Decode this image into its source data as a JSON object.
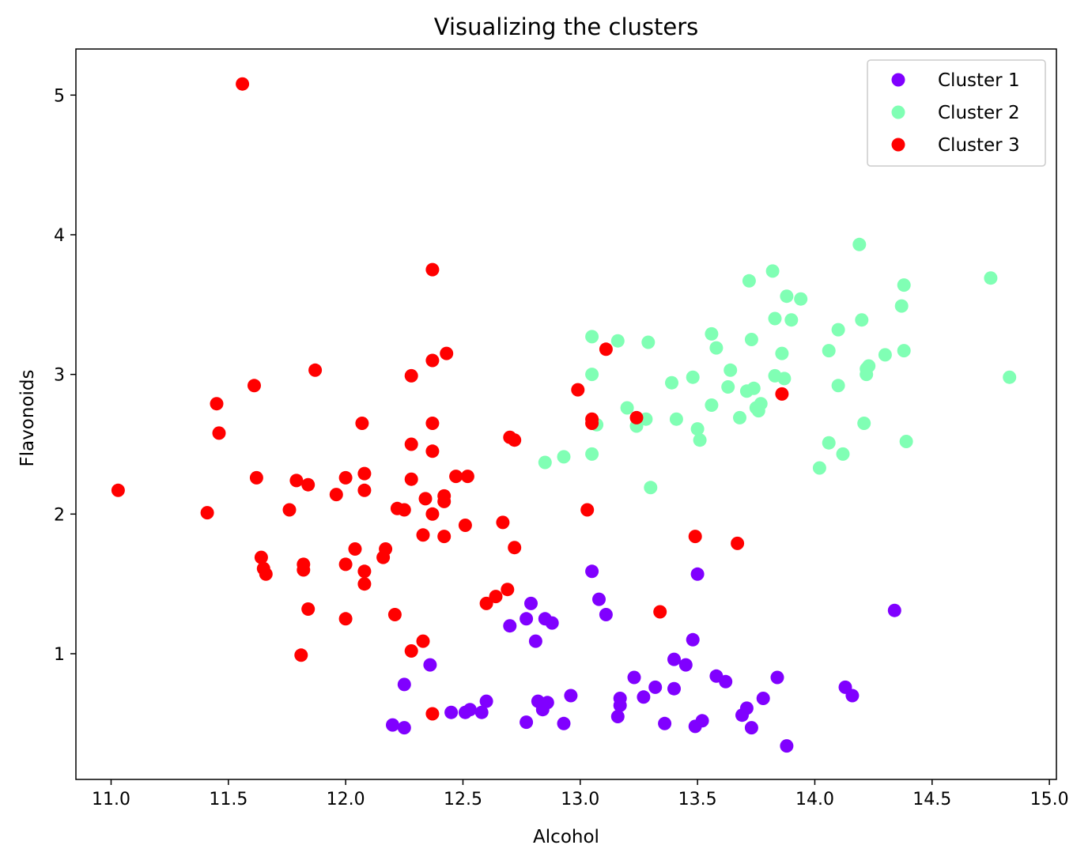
{
  "chart_data": {
    "type": "scatter",
    "title": "Visualizing the clusters",
    "xlabel": "Alcohol",
    "ylabel": "Flavonoids",
    "xlim": [
      10.85,
      15.03
    ],
    "ylim": [
      0.1,
      5.33
    ],
    "xticks": [
      "11.0",
      "11.5",
      "12.0",
      "12.5",
      "13.0",
      "13.5",
      "14.0",
      "14.5",
      "15.0"
    ],
    "yticks": [
      "1",
      "2",
      "3",
      "4",
      "5"
    ],
    "grid": false,
    "legend_position": "top-right",
    "series": [
      {
        "name": "Cluster 1",
        "color": "#8000ff",
        "points": [
          [
            12.2,
            0.49
          ],
          [
            12.25,
            0.47
          ],
          [
            12.25,
            0.78
          ],
          [
            12.36,
            0.92
          ],
          [
            12.45,
            0.58
          ],
          [
            12.51,
            0.58
          ],
          [
            12.53,
            0.6
          ],
          [
            12.58,
            0.58
          ],
          [
            12.6,
            0.66
          ],
          [
            12.7,
            1.2
          ],
          [
            12.77,
            1.25
          ],
          [
            12.77,
            0.51
          ],
          [
            12.79,
            1.36
          ],
          [
            12.81,
            1.09
          ],
          [
            12.82,
            0.66
          ],
          [
            12.84,
            0.6
          ],
          [
            12.85,
            1.25
          ],
          [
            12.86,
            0.65
          ],
          [
            12.88,
            1.22
          ],
          [
            12.93,
            0.5
          ],
          [
            12.96,
            0.7
          ],
          [
            13.05,
            1.59
          ],
          [
            13.08,
            1.39
          ],
          [
            13.11,
            1.28
          ],
          [
            13.16,
            0.55
          ],
          [
            13.17,
            0.68
          ],
          [
            13.17,
            0.63
          ],
          [
            13.23,
            0.83
          ],
          [
            13.27,
            0.69
          ],
          [
            13.32,
            0.76
          ],
          [
            13.36,
            0.5
          ],
          [
            13.4,
            0.96
          ],
          [
            13.4,
            0.75
          ],
          [
            13.45,
            0.92
          ],
          [
            13.48,
            1.1
          ],
          [
            13.49,
            0.48
          ],
          [
            13.5,
            1.57
          ],
          [
            13.52,
            0.52
          ],
          [
            13.58,
            0.84
          ],
          [
            13.62,
            0.8
          ],
          [
            13.69,
            0.56
          ],
          [
            13.71,
            0.61
          ],
          [
            13.73,
            0.47
          ],
          [
            13.78,
            0.68
          ],
          [
            13.84,
            0.83
          ],
          [
            13.88,
            0.34
          ],
          [
            14.13,
            0.76
          ],
          [
            14.16,
            0.7
          ],
          [
            14.34,
            1.31
          ]
        ]
      },
      {
        "name": "Cluster 2",
        "color": "#80ffb4",
        "points": [
          [
            12.85,
            2.37
          ],
          [
            12.93,
            2.41
          ],
          [
            13.05,
            3.27
          ],
          [
            13.05,
            3.0
          ],
          [
            13.05,
            2.43
          ],
          [
            13.07,
            2.64
          ],
          [
            13.16,
            3.24
          ],
          [
            13.2,
            2.76
          ],
          [
            13.24,
            2.63
          ],
          [
            13.28,
            2.68
          ],
          [
            13.29,
            3.23
          ],
          [
            13.3,
            2.19
          ],
          [
            13.39,
            2.94
          ],
          [
            13.41,
            2.68
          ],
          [
            13.48,
            2.98
          ],
          [
            13.5,
            2.61
          ],
          [
            13.51,
            2.53
          ],
          [
            13.56,
            3.29
          ],
          [
            13.56,
            2.78
          ],
          [
            13.58,
            3.19
          ],
          [
            13.63,
            2.91
          ],
          [
            13.64,
            3.03
          ],
          [
            13.68,
            2.69
          ],
          [
            13.71,
            2.88
          ],
          [
            13.72,
            3.67
          ],
          [
            13.73,
            3.25
          ],
          [
            13.74,
            2.9
          ],
          [
            13.75,
            2.76
          ],
          [
            13.76,
            2.74
          ],
          [
            13.77,
            2.79
          ],
          [
            13.82,
            3.74
          ],
          [
            13.83,
            3.4
          ],
          [
            13.83,
            2.99
          ],
          [
            13.86,
            3.15
          ],
          [
            13.87,
            2.97
          ],
          [
            13.88,
            3.56
          ],
          [
            13.9,
            3.39
          ],
          [
            13.94,
            3.54
          ],
          [
            14.02,
            2.33
          ],
          [
            14.06,
            3.17
          ],
          [
            14.06,
            2.51
          ],
          [
            14.1,
            3.32
          ],
          [
            14.1,
            2.92
          ],
          [
            14.12,
            2.43
          ],
          [
            14.19,
            3.93
          ],
          [
            14.2,
            3.39
          ],
          [
            14.21,
            2.65
          ],
          [
            14.22,
            3.0
          ],
          [
            14.22,
            3.04
          ],
          [
            14.23,
            3.06
          ],
          [
            14.3,
            3.14
          ],
          [
            14.37,
            3.49
          ],
          [
            14.38,
            3.64
          ],
          [
            14.38,
            3.17
          ],
          [
            14.39,
            2.52
          ],
          [
            14.75,
            3.69
          ],
          [
            14.83,
            2.98
          ]
        ]
      },
      {
        "name": "Cluster 3",
        "color": "#ff0000",
        "points": [
          [
            11.03,
            2.17
          ],
          [
            11.41,
            2.01
          ],
          [
            11.45,
            2.79
          ],
          [
            11.46,
            2.58
          ],
          [
            11.56,
            5.08
          ],
          [
            11.61,
            2.92
          ],
          [
            11.62,
            2.26
          ],
          [
            11.64,
            1.69
          ],
          [
            11.65,
            1.61
          ],
          [
            11.66,
            1.57
          ],
          [
            11.76,
            2.03
          ],
          [
            11.79,
            2.24
          ],
          [
            11.81,
            0.99
          ],
          [
            11.82,
            1.64
          ],
          [
            11.82,
            1.6
          ],
          [
            11.84,
            2.21
          ],
          [
            11.84,
            1.32
          ],
          [
            11.87,
            3.03
          ],
          [
            11.96,
            2.14
          ],
          [
            12.0,
            2.26
          ],
          [
            12.0,
            1.64
          ],
          [
            12.0,
            1.25
          ],
          [
            12.04,
            1.75
          ],
          [
            12.07,
            2.65
          ],
          [
            12.08,
            2.29
          ],
          [
            12.08,
            2.17
          ],
          [
            12.08,
            1.59
          ],
          [
            12.08,
            1.5
          ],
          [
            12.16,
            1.69
          ],
          [
            12.17,
            1.75
          ],
          [
            12.21,
            1.28
          ],
          [
            12.22,
            2.04
          ],
          [
            12.25,
            2.03
          ],
          [
            12.28,
            2.99
          ],
          [
            12.28,
            2.5
          ],
          [
            12.28,
            2.25
          ],
          [
            12.28,
            1.02
          ],
          [
            12.33,
            1.85
          ],
          [
            12.33,
            1.09
          ],
          [
            12.34,
            2.11
          ],
          [
            12.37,
            3.75
          ],
          [
            12.37,
            3.1
          ],
          [
            12.37,
            2.65
          ],
          [
            12.37,
            2.45
          ],
          [
            12.37,
            2.0
          ],
          [
            12.37,
            0.57
          ],
          [
            12.42,
            2.13
          ],
          [
            12.42,
            2.09
          ],
          [
            12.42,
            1.84
          ],
          [
            12.43,
            3.15
          ],
          [
            12.47,
            2.27
          ],
          [
            12.51,
            1.92
          ],
          [
            12.52,
            2.27
          ],
          [
            12.6,
            1.36
          ],
          [
            12.64,
            1.41
          ],
          [
            12.67,
            1.94
          ],
          [
            12.69,
            1.46
          ],
          [
            12.7,
            2.55
          ],
          [
            12.72,
            2.53
          ],
          [
            12.72,
            1.76
          ],
          [
            12.99,
            2.89
          ],
          [
            13.03,
            2.03
          ],
          [
            13.05,
            2.68
          ],
          [
            13.05,
            2.65
          ],
          [
            13.11,
            3.18
          ],
          [
            13.24,
            2.69
          ],
          [
            13.34,
            1.3
          ],
          [
            13.49,
            1.84
          ],
          [
            13.67,
            1.79
          ],
          [
            13.86,
            2.86
          ]
        ]
      }
    ]
  }
}
